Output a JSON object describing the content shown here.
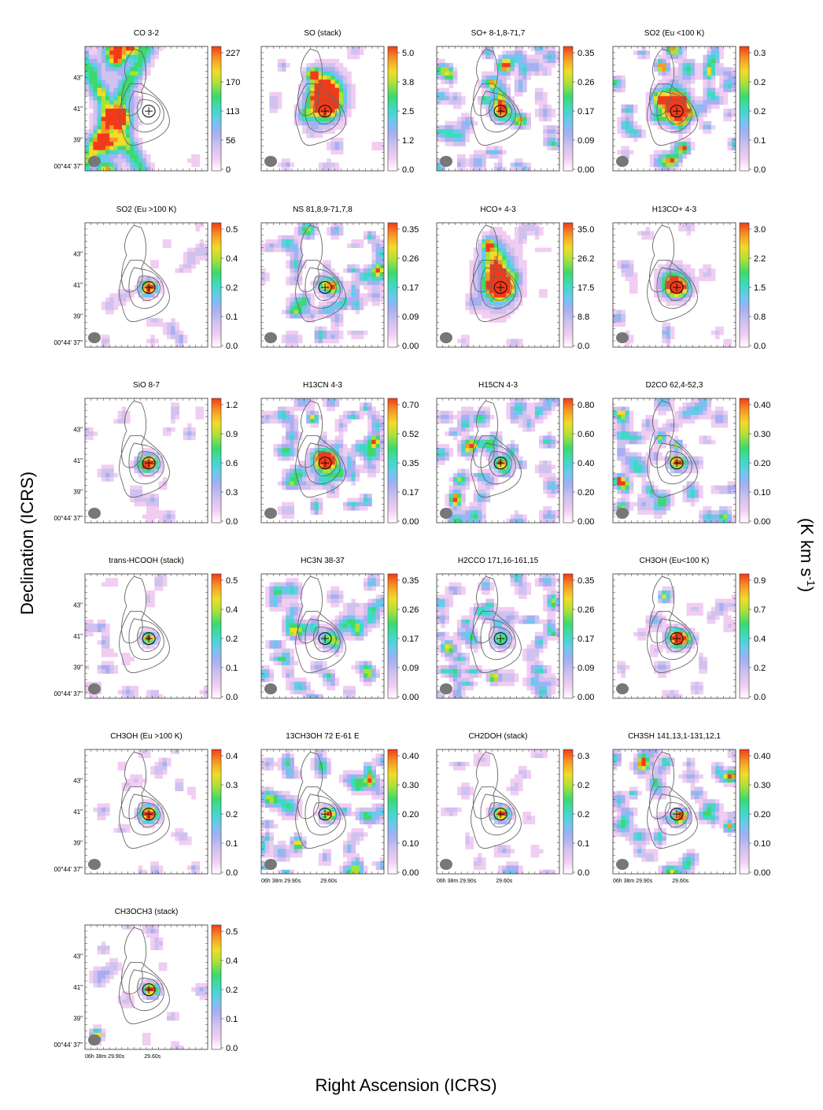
{
  "figure": {
    "ylabel": "Declination (ICRS)",
    "xlabel": "Right Ascension (ICRS)",
    "cbar_label_main": "(K km s",
    "cbar_label_exp": "-1",
    "cbar_label_close": ")"
  },
  "axes": {
    "dec_ticks": [
      "43\"",
      "41\"",
      "39\"",
      "00°44' 37\""
    ],
    "ra_ticks": [
      "06h 38m 29.90s",
      "29.60s"
    ],
    "ra_tick_rows": [
      4,
      5
    ]
  },
  "colormap": [
    "#ffffff",
    "#f1cdf2",
    "#cfc2ee",
    "#a8aff1",
    "#6cc7ee",
    "#40d9c1",
    "#3fd86d",
    "#a6e13c",
    "#f2dc28",
    "#f59a25",
    "#f23a1a"
  ],
  "chart_data": [
    {
      "type": "heatmap",
      "title": "CO 3-2",
      "cbar_ticks": [
        "227",
        "170",
        "113",
        "56",
        "0"
      ],
      "vmin": 0,
      "vmax": 227,
      "pattern": "x",
      "blobs": [
        [
          0.25,
          0.05,
          1.0,
          0.06,
          0.08
        ],
        [
          0.24,
          0.58,
          0.9,
          0.07,
          0.05
        ],
        [
          0.3,
          0.55,
          0.7,
          0.06,
          0.04
        ],
        [
          0.18,
          0.78,
          0.9,
          0.08,
          0.06
        ],
        [
          0.18,
          0.99,
          0.8,
          0.05,
          0.04
        ],
        [
          0.38,
          0.02,
          0.8,
          0.05,
          0.04
        ]
      ]
    },
    {
      "type": "heatmap",
      "title": "SO (stack)",
      "cbar_ticks": [
        "5.0",
        "3.8",
        "2.5",
        "1.2",
        "0.0"
      ],
      "vmin": 0,
      "vmax": 5,
      "pattern": "core",
      "blobs": [
        [
          0.52,
          0.45,
          1.2,
          0.08,
          0.09
        ],
        [
          0.36,
          0.55,
          0.5,
          0.05,
          0.05
        ],
        [
          0.42,
          0.22,
          1.0,
          0.035,
          0.035
        ],
        [
          0.55,
          0.38,
          0.6,
          0.1,
          0.13
        ],
        [
          0.5,
          0.35,
          0.5,
          0.08,
          0.1
        ]
      ]
    },
    {
      "type": "heatmap",
      "title": "SO+ 8-1,8-71,7",
      "cbar_ticks": [
        "0.35",
        "0.26",
        "0.17",
        "0.09",
        "0.00"
      ],
      "vmin": 0,
      "vmax": 0.35,
      "pattern": "noise",
      "blobs": [
        [
          0.53,
          0.52,
          0.9,
          0.06,
          0.05
        ],
        [
          0.53,
          0.42,
          0.7,
          0.035,
          0.08
        ],
        [
          0.46,
          0.3,
          0.9,
          0.03,
          0.04
        ]
      ]
    },
    {
      "type": "heatmap",
      "title": "SO2 (Eu <100 K)",
      "cbar_ticks": [
        "0.3",
        "0.2",
        "0.2",
        "0.1",
        "0.0"
      ],
      "vmin": 0,
      "vmax": 0.3,
      "pattern": "noise",
      "blobs": [
        [
          0.52,
          0.52,
          1.2,
          0.08,
          0.07
        ],
        [
          0.38,
          0.42,
          0.8,
          0.05,
          0.05
        ],
        [
          0.41,
          0.17,
          0.9,
          0.03,
          0.03
        ],
        [
          0.5,
          0.4,
          0.6,
          0.07,
          0.09
        ]
      ]
    },
    {
      "type": "heatmap",
      "title": "SO2 (Eu >100 K)",
      "cbar_ticks": [
        "0.5",
        "0.4",
        "0.2",
        "0.1",
        "0.0"
      ],
      "vmin": 0,
      "vmax": 0.5,
      "pattern": "faint",
      "blobs": [
        [
          0.52,
          0.52,
          1.3,
          0.045,
          0.04
        ]
      ]
    },
    {
      "type": "heatmap",
      "title": "NS 81,8,9-71,7,8",
      "cbar_ticks": [
        "0.35",
        "0.26",
        "0.17",
        "0.09",
        "0.00"
      ],
      "vmin": 0,
      "vmax": 0.35,
      "pattern": "noise",
      "blobs": [
        [
          0.55,
          0.52,
          0.6,
          0.05,
          0.05
        ]
      ]
    },
    {
      "type": "heatmap",
      "title": "HCO+ 4-3",
      "cbar_ticks": [
        "35.0",
        "26.2",
        "17.5",
        "8.8",
        "0.0"
      ],
      "vmin": 0,
      "vmax": 35,
      "pattern": "core",
      "blobs": [
        [
          0.52,
          0.52,
          1.3,
          0.07,
          0.06
        ],
        [
          0.42,
          0.18,
          1.0,
          0.03,
          0.035
        ],
        [
          0.5,
          0.45,
          0.7,
          0.11,
          0.16
        ],
        [
          0.47,
          0.3,
          0.5,
          0.06,
          0.12
        ]
      ]
    },
    {
      "type": "heatmap",
      "title": "H13CO+ 4-3",
      "cbar_ticks": [
        "3.0",
        "2.2",
        "1.5",
        "0.8",
        "0.0"
      ],
      "vmin": 0,
      "vmax": 3,
      "pattern": "faint",
      "blobs": [
        [
          0.52,
          0.52,
          1.2,
          0.06,
          0.05
        ],
        [
          0.5,
          0.48,
          0.5,
          0.09,
          0.09
        ]
      ]
    },
    {
      "type": "heatmap",
      "title": "SiO 8-7",
      "cbar_ticks": [
        "1.2",
        "0.9",
        "0.6",
        "0.3",
        "0.0"
      ],
      "vmin": 0,
      "vmax": 1.2,
      "pattern": "faint",
      "blobs": [
        [
          0.52,
          0.52,
          1.3,
          0.05,
          0.045
        ]
      ]
    },
    {
      "type": "heatmap",
      "title": "H13CN 4-3",
      "cbar_ticks": [
        "0.70",
        "0.52",
        "0.35",
        "0.17",
        "0.00"
      ],
      "vmin": 0,
      "vmax": 0.7,
      "pattern": "noise",
      "blobs": [
        [
          0.52,
          0.52,
          1.2,
          0.07,
          0.06
        ],
        [
          0.42,
          0.16,
          0.8,
          0.03,
          0.03
        ]
      ]
    },
    {
      "type": "heatmap",
      "title": "H15CN 4-3",
      "cbar_ticks": [
        "0.80",
        "0.60",
        "0.40",
        "0.20",
        "0.00"
      ],
      "vmin": 0,
      "vmax": 0.8,
      "pattern": "noise",
      "blobs": [
        [
          0.53,
          0.52,
          1.0,
          0.045,
          0.04
        ]
      ]
    },
    {
      "type": "heatmap",
      "title": "D2CO 62,4-52,3",
      "cbar_ticks": [
        "0.40",
        "0.30",
        "0.20",
        "0.10",
        "0.00"
      ],
      "vmin": 0,
      "vmax": 0.4,
      "pattern": "noise",
      "blobs": [
        [
          0.53,
          0.52,
          1.0,
          0.045,
          0.04
        ],
        [
          0.05,
          0.66,
          0.9,
          0.03,
          0.03
        ],
        [
          0.52,
          0.38,
          0.7,
          0.03,
          0.03
        ]
      ]
    },
    {
      "type": "heatmap",
      "title": "trans-HCOOH (stack)",
      "cbar_ticks": [
        "0.5",
        "0.4",
        "0.2",
        "0.1",
        "0.0"
      ],
      "vmin": 0,
      "vmax": 0.5,
      "pattern": "faint",
      "blobs": [
        [
          0.52,
          0.52,
          1.0,
          0.04,
          0.035
        ]
      ]
    },
    {
      "type": "heatmap",
      "title": "HC3N 38-37",
      "cbar_ticks": [
        "0.35",
        "0.26",
        "0.17",
        "0.09",
        "0.00"
      ],
      "vmin": 0,
      "vmax": 0.35,
      "pattern": "noise",
      "blobs": [
        [
          0.55,
          0.52,
          0.7,
          0.05,
          0.05
        ]
      ]
    },
    {
      "type": "heatmap",
      "title": "H2CCO 171,16-161,15",
      "cbar_ticks": [
        "0.35",
        "0.26",
        "0.17",
        "0.09",
        "0.00"
      ],
      "vmin": 0,
      "vmax": 0.35,
      "pattern": "noise",
      "blobs": [
        [
          0.53,
          0.52,
          0.7,
          0.05,
          0.05
        ],
        [
          0.47,
          0.83,
          1.0,
          0.03,
          0.03
        ]
      ]
    },
    {
      "type": "heatmap",
      "title": "CH3OH (Eu<100 K)",
      "cbar_ticks": [
        "0.9",
        "0.7",
        "0.4",
        "0.2",
        "0.0"
      ],
      "vmin": 0,
      "vmax": 0.9,
      "pattern": "faint",
      "blobs": [
        [
          0.53,
          0.52,
          1.3,
          0.06,
          0.05
        ],
        [
          0.42,
          0.18,
          0.7,
          0.03,
          0.03
        ]
      ]
    },
    {
      "type": "heatmap",
      "title": "CH3OH (Eu >100 K)",
      "cbar_ticks": [
        "0.4",
        "0.3",
        "0.2",
        "0.1",
        "0.0"
      ],
      "vmin": 0,
      "vmax": 0.4,
      "pattern": "faint",
      "blobs": [
        [
          0.52,
          0.52,
          1.3,
          0.05,
          0.045
        ]
      ]
    },
    {
      "type": "heatmap",
      "title": "13CH3OH 72 E-61 E",
      "cbar_ticks": [
        "0.40",
        "0.30",
        "0.20",
        "0.10",
        "0.00"
      ],
      "vmin": 0,
      "vmax": 0.4,
      "pattern": "noise",
      "blobs": [
        [
          0.55,
          0.52,
          1.0,
          0.045,
          0.04
        ]
      ]
    },
    {
      "type": "heatmap",
      "title": "CH2DOH (stack)",
      "cbar_ticks": [
        "0.3",
        "0.2",
        "0.2",
        "0.1",
        "0.0"
      ],
      "vmin": 0,
      "vmax": 0.3,
      "pattern": "faint",
      "blobs": [
        [
          0.53,
          0.52,
          1.1,
          0.045,
          0.04
        ]
      ]
    },
    {
      "type": "heatmap",
      "title": "CH3SH 141,13,1-131,12,1",
      "cbar_ticks": [
        "0.40",
        "0.30",
        "0.20",
        "0.10",
        "0.00"
      ],
      "vmin": 0,
      "vmax": 0.4,
      "pattern": "noise",
      "blobs": [
        [
          0.55,
          0.55,
          0.9,
          0.04,
          0.04
        ],
        [
          0.95,
          0.62,
          0.9,
          0.03,
          0.03
        ]
      ]
    },
    {
      "type": "heatmap",
      "title": "CH3OCH3 (stack)",
      "cbar_ticks": [
        "0.5",
        "0.4",
        "0.2",
        "0.1",
        "0.0"
      ],
      "vmin": 0,
      "vmax": 0.5,
      "pattern": "faint",
      "blobs": [
        [
          0.53,
          0.52,
          1.0,
          0.04,
          0.035
        ],
        [
          0.1,
          0.88,
          0.8,
          0.03,
          0.03
        ]
      ]
    }
  ]
}
